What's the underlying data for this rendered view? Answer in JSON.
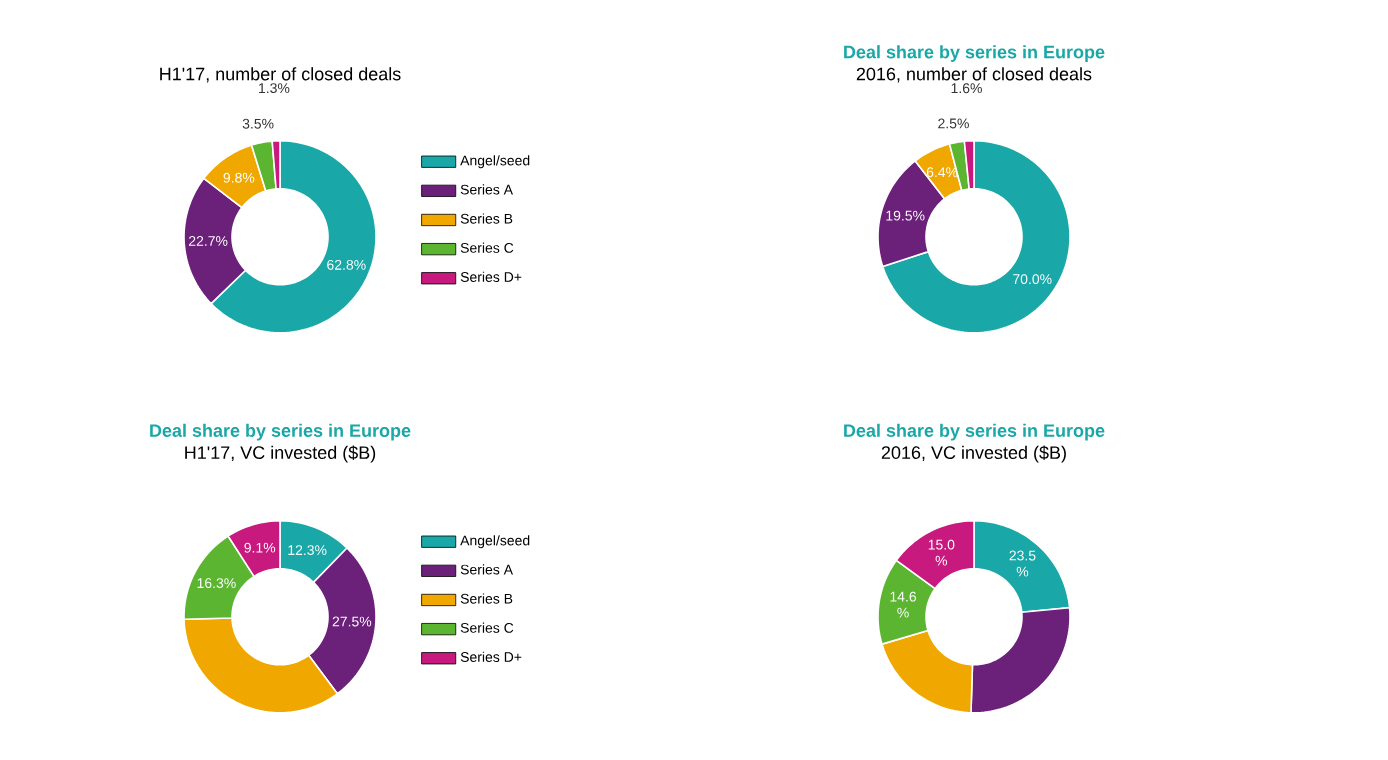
{
  "chart_data": [
    {
      "type": "donut",
      "subtitle": "H1'17, number of closed deals",
      "categories": [
        "Angel/seed",
        "Series A",
        "Series B",
        "Series C",
        "Series D+"
      ],
      "values": [
        62.8,
        22.7,
        9.8,
        3.5,
        1.3
      ],
      "value_labels": [
        "62.8%",
        "22.7%",
        "9.8%",
        "3.5%",
        "1.3%"
      ],
      "colors": [
        "#1aa7a7",
        "#6b2079",
        "#f0a800",
        "#5cb531",
        "#c8197f"
      ],
      "legend": "right"
    },
    {
      "type": "donut",
      "title": "Deal share by series in Europe",
      "subtitle": "2016, number of closed deals",
      "categories": [
        null,
        null,
        null,
        null,
        null
      ],
      "values": [
        70.0,
        19.5,
        6.4,
        2.5,
        1.6
      ],
      "value_labels": [
        "70.0%",
        "19.5%",
        "6.4%",
        "2.5%",
        "1.6%"
      ],
      "colors": [
        "#1aa7a7",
        "#6b2079",
        "#f0a800",
        "#5cb531",
        "#c8197f"
      ]
    },
    {
      "type": "donut",
      "title": "Deal share by series in Europe",
      "subtitle": "H1'17, VC invested ($B)",
      "categories": [
        "Angel/seed",
        "Series A",
        "Series B",
        "Series C",
        "Series D+"
      ],
      "values": [
        12.3,
        27.5,
        34.8,
        16.3,
        9.1
      ],
      "value_labels": [
        "12.3%",
        "27.5%",
        null,
        "16.3%",
        "9.1%"
      ],
      "colors": [
        "#1aa7a7",
        "#6b2079",
        "#f0a800",
        "#5cb531",
        "#c8197f"
      ],
      "legend": "right"
    },
    {
      "type": "donut",
      "title": "Deal share by series in Europe",
      "subtitle": "2016, VC invested ($B)",
      "categories": [
        null,
        null,
        null,
        null,
        null
      ],
      "values": [
        23.5,
        27.0,
        19.9,
        14.6,
        15.0
      ],
      "value_labels": [
        "23.5 %",
        null,
        null,
        "14.6 %",
        "15.0 %"
      ],
      "colors": [
        "#1aa7a7",
        "#6b2079",
        "#f0a800",
        "#5cb531",
        "#c8197f"
      ]
    }
  ]
}
